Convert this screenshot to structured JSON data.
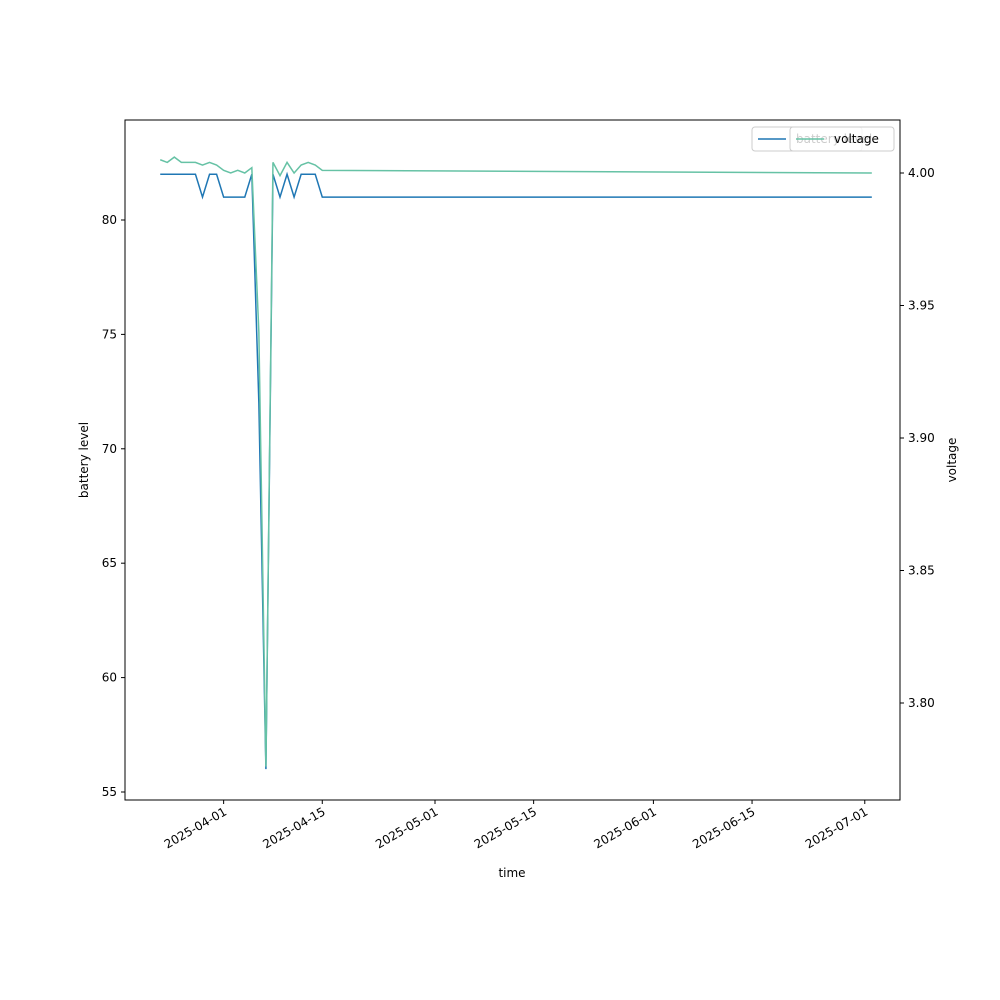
{
  "chart_data": {
    "type": "line",
    "xlabel": "time",
    "ylabel": "battery level",
    "y2label": "voltage",
    "x": [
      "2025-03-23",
      "2025-03-24",
      "2025-03-25",
      "2025-03-26",
      "2025-03-27",
      "2025-03-28",
      "2025-03-29",
      "2025-03-30",
      "2025-03-31",
      "2025-04-01",
      "2025-04-02",
      "2025-04-03",
      "2025-04-04",
      "2025-04-05",
      "2025-04-06",
      "2025-04-07",
      "2025-04-08",
      "2025-04-09",
      "2025-04-10",
      "2025-04-11",
      "2025-04-12",
      "2025-04-13",
      "2025-04-14",
      "2025-04-15",
      "2025-07-02"
    ],
    "series": [
      {
        "name": "battery level",
        "color": "#1f77b4",
        "values": [
          82,
          82,
          82,
          82,
          82,
          82,
          81,
          82,
          82,
          81,
          81,
          81,
          81,
          82,
          72,
          56,
          82,
          81,
          82,
          81,
          82,
          82,
          82,
          81,
          81
        ]
      },
      {
        "name": "voltage",
        "color": "#66c2a5",
        "axis": "y2",
        "values": [
          4.005,
          4.004,
          4.006,
          4.004,
          4.004,
          4.004,
          4.003,
          4.004,
          4.003,
          4.001,
          4.0,
          4.001,
          4.0,
          4.002,
          3.94,
          3.776,
          4.004,
          3.999,
          4.004,
          4.0,
          4.003,
          4.004,
          4.003,
          4.001,
          4.0
        ]
      }
    ],
    "xlim": [
      "2025-03-18",
      "2025-07-06"
    ],
    "xticks": [
      "2025-04-01",
      "2025-04-15",
      "2025-05-01",
      "2025-05-15",
      "2025-06-01",
      "2025-06-15",
      "2025-07-01"
    ],
    "ylim": [
      54.65,
      84.37
    ],
    "yticks": [
      55,
      60,
      65,
      70,
      75,
      80
    ],
    "y2lim": [
      3.7634,
      4.02
    ],
    "y2ticks": [
      {
        "value": 3.8,
        "label": "3.80"
      },
      3.85,
      {
        "value": 3.9,
        "label": "3.90"
      },
      3.95,
      {
        "value": 4.0,
        "label": "4.00"
      }
    ],
    "legend": "upper right"
  }
}
